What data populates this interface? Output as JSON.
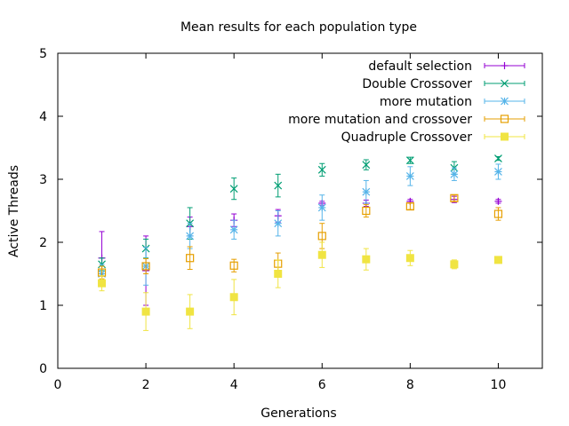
{
  "chart_data": {
    "type": "scatter",
    "title": "Mean results for each population type",
    "xlabel": "Generations",
    "ylabel": "Active Threads",
    "xlim": [
      0,
      11
    ],
    "ylim": [
      0,
      5
    ],
    "xticks": [
      0,
      2,
      4,
      6,
      8,
      10
    ],
    "yticks": [
      0,
      1,
      2,
      3,
      4,
      5
    ],
    "legend_position": "top-right",
    "error_bars": true,
    "series": [
      {
        "name": "default selection",
        "color": "#9400d3",
        "marker": "plus",
        "points": [
          {
            "x": 1,
            "y": 1.75,
            "err": 0.42
          },
          {
            "x": 2,
            "y": 1.55,
            "err": 0.55
          },
          {
            "x": 3,
            "y": 2.25,
            "err": 0.15
          },
          {
            "x": 4,
            "y": 2.35,
            "err": 0.1
          },
          {
            "x": 5,
            "y": 2.42,
            "err": 0.1
          },
          {
            "x": 6,
            "y": 2.62,
            "err": 0.03
          },
          {
            "x": 7,
            "y": 2.62,
            "err": 0.05
          },
          {
            "x": 8,
            "y": 2.65,
            "err": 0.03
          },
          {
            "x": 9,
            "y": 2.68,
            "err": 0.05
          },
          {
            "x": 10,
            "y": 2.65,
            "err": 0.03
          }
        ]
      },
      {
        "name": "Double Crossover",
        "color": "#009e73",
        "marker": "cross",
        "points": [
          {
            "x": 1,
            "y": 1.65,
            "err": 0.1
          },
          {
            "x": 2,
            "y": 1.9,
            "err": 0.15
          },
          {
            "x": 3,
            "y": 2.3,
            "err": 0.25
          },
          {
            "x": 4,
            "y": 2.85,
            "err": 0.17
          },
          {
            "x": 5,
            "y": 2.9,
            "err": 0.18
          },
          {
            "x": 6,
            "y": 3.15,
            "err": 0.1
          },
          {
            "x": 7,
            "y": 3.23,
            "err": 0.08
          },
          {
            "x": 8,
            "y": 3.3,
            "err": 0.05
          },
          {
            "x": 9,
            "y": 3.18,
            "err": 0.1
          },
          {
            "x": 10,
            "y": 3.33,
            "err": 0.03
          }
        ]
      },
      {
        "name": "more mutation",
        "color": "#56b4e9",
        "marker": "star",
        "points": [
          {
            "x": 1,
            "y": 1.5,
            "err": 0.15
          },
          {
            "x": 2,
            "y": 1.62,
            "err": 0.3
          },
          {
            "x": 3,
            "y": 2.1,
            "err": 0.2
          },
          {
            "x": 4,
            "y": 2.2,
            "err": 0.15
          },
          {
            "x": 5,
            "y": 2.3,
            "err": 0.2
          },
          {
            "x": 6,
            "y": 2.55,
            "err": 0.2
          },
          {
            "x": 7,
            "y": 2.8,
            "err": 0.18
          },
          {
            "x": 8,
            "y": 3.05,
            "err": 0.15
          },
          {
            "x": 9,
            "y": 3.08,
            "err": 0.1
          },
          {
            "x": 10,
            "y": 3.12,
            "err": 0.12
          }
        ]
      },
      {
        "name": "more mutation and crossover",
        "color": "#e69f00",
        "marker": "open-square",
        "points": [
          {
            "x": 1,
            "y": 1.52,
            "err": 0.1
          },
          {
            "x": 2,
            "y": 1.62,
            "err": 0.12
          },
          {
            "x": 3,
            "y": 1.75,
            "err": 0.18
          },
          {
            "x": 4,
            "y": 1.63,
            "err": 0.1
          },
          {
            "x": 5,
            "y": 1.66,
            "err": 0.17
          },
          {
            "x": 6,
            "y": 2.1,
            "err": 0.2
          },
          {
            "x": 7,
            "y": 2.5,
            "err": 0.1
          },
          {
            "x": 8,
            "y": 2.57,
            "err": 0.05
          },
          {
            "x": 9,
            "y": 2.7,
            "err": 0.05
          },
          {
            "x": 10,
            "y": 2.45,
            "err": 0.1
          }
        ]
      },
      {
        "name": "Quadruple Crossover",
        "color": "#f0e442",
        "marker": "filled-square",
        "points": [
          {
            "x": 1,
            "y": 1.35,
            "err": 0.12
          },
          {
            "x": 2,
            "y": 0.9,
            "err": 0.3
          },
          {
            "x": 3,
            "y": 0.9,
            "err": 0.27
          },
          {
            "x": 4,
            "y": 1.13,
            "err": 0.28
          },
          {
            "x": 5,
            "y": 1.5,
            "err": 0.22
          },
          {
            "x": 6,
            "y": 1.8,
            "err": 0.2
          },
          {
            "x": 7,
            "y": 1.73,
            "err": 0.17
          },
          {
            "x": 8,
            "y": 1.75,
            "err": 0.12
          },
          {
            "x": 9,
            "y": 1.65,
            "err": 0.07
          },
          {
            "x": 10,
            "y": 1.72,
            "err": 0.03
          }
        ]
      }
    ]
  }
}
